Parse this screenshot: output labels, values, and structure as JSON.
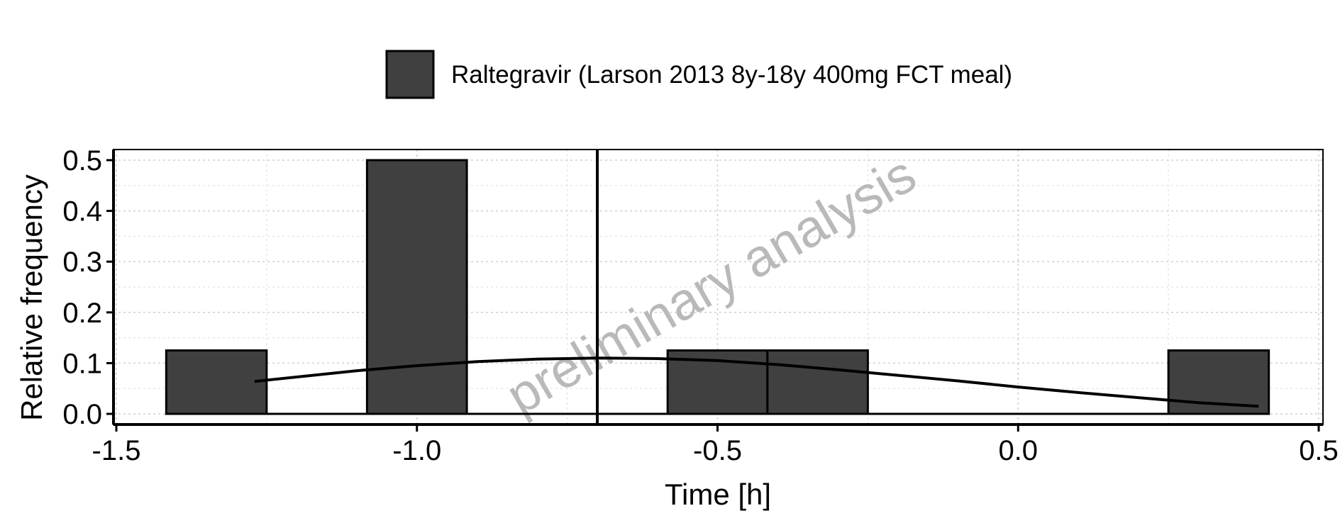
{
  "chart_data": {
    "type": "bar",
    "xlabel": "Time [h]",
    "ylabel": "Relative frequency",
    "xlim": [
      -1.5,
      0.5
    ],
    "ylim": [
      0,
      0.5
    ],
    "x_ticks": [
      -1.5,
      -1.0,
      -0.5,
      0.0,
      0.5
    ],
    "x_tick_labels": [
      "-1.5",
      "-1.0",
      "-0.5",
      "0.0",
      "0.5"
    ],
    "y_ticks": [
      0.0,
      0.1,
      0.2,
      0.3,
      0.4,
      0.5
    ],
    "y_tick_labels": [
      "0.0",
      "0.1",
      "0.2",
      "0.3",
      "0.4",
      "0.5"
    ],
    "grid": true,
    "legend_position": "top",
    "series": [
      {
        "name": "Raltegravir (Larson 2013 8y-18y 400mg FCT meal)",
        "color": "#404040",
        "bins": [
          {
            "x0": -1.417,
            "x1": -1.25,
            "value": 0.125
          },
          {
            "x0": -1.083,
            "x1": -0.917,
            "value": 0.5
          },
          {
            "x0": -0.583,
            "x1": -0.417,
            "value": 0.125
          },
          {
            "x0": -0.417,
            "x1": -0.25,
            "value": 0.125
          },
          {
            "x0": 0.25,
            "x1": 0.417,
            "value": 0.125
          }
        ],
        "density_curve": {
          "x": [
            -1.27,
            -1.1,
            -1.0,
            -0.9,
            -0.8,
            -0.7,
            -0.6,
            -0.5,
            -0.4,
            -0.3,
            -0.2,
            -0.1,
            0.0,
            0.1,
            0.2,
            0.3,
            0.4
          ],
          "y": [
            0.064,
            0.085,
            0.095,
            0.103,
            0.108,
            0.11,
            0.109,
            0.105,
            0.097,
            0.087,
            0.076,
            0.065,
            0.053,
            0.042,
            0.032,
            0.022,
            0.015
          ]
        },
        "reference_line_x": -0.7
      }
    ],
    "watermark": "preliminary analysis"
  }
}
